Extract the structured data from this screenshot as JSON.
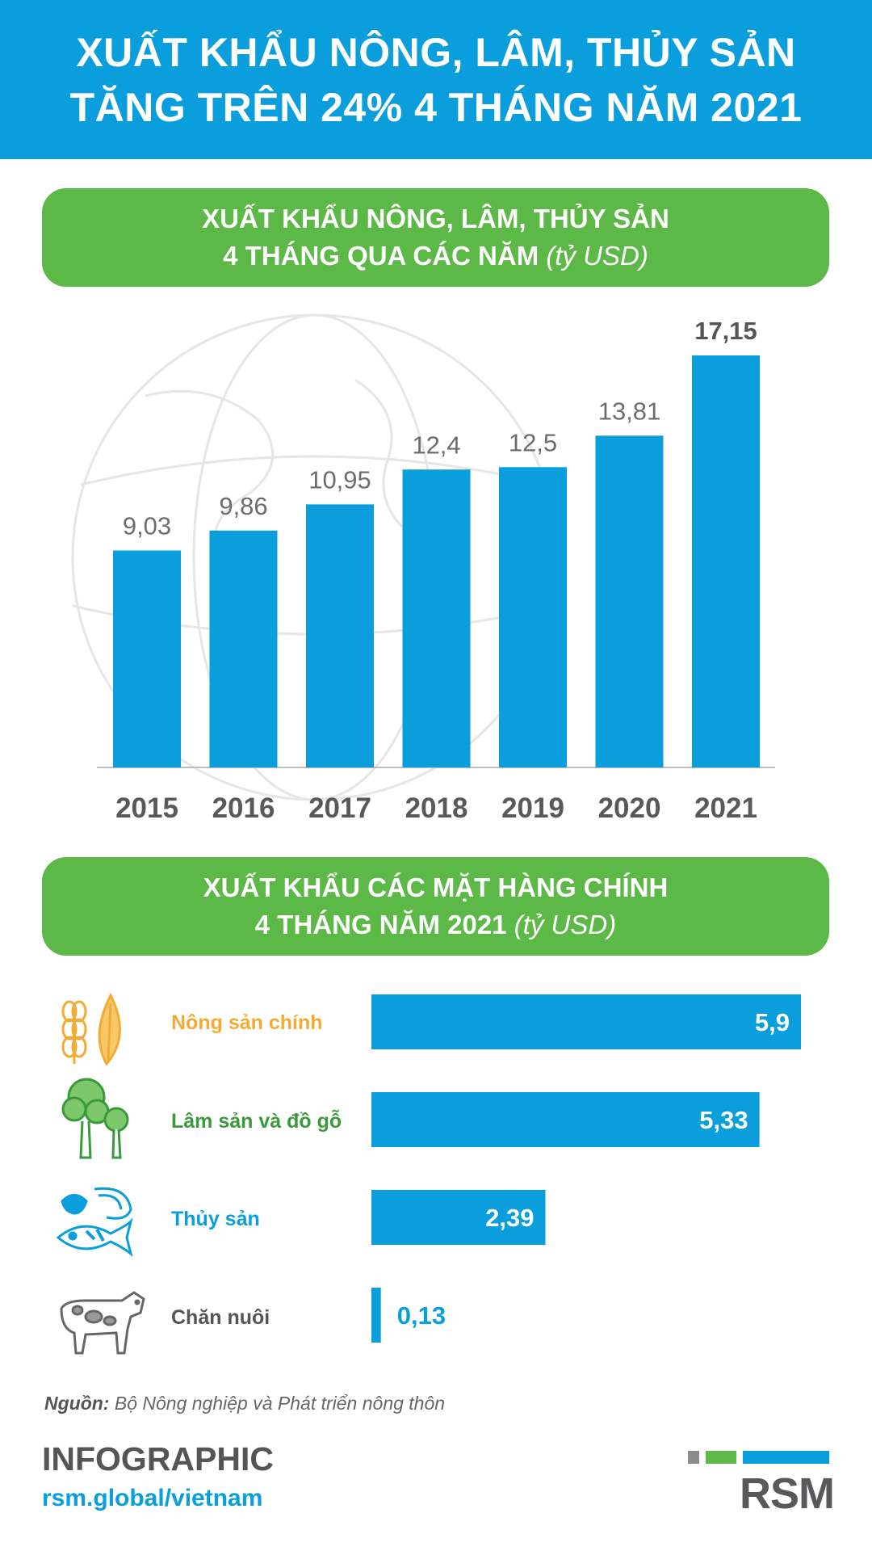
{
  "header": {
    "line1": "XUẤT KHẨU NÔNG, LÂM, THỦY SẢN",
    "line2": "TĂNG TRÊN 24% 4 THÁNG NĂM 2021"
  },
  "section1": {
    "line1": "XUẤT KHẨU NÔNG, LÂM, THỦY SẢN",
    "line2": "4 THÁNG QUA CÁC NĂM",
    "unit": "(tỷ USD)"
  },
  "section2": {
    "line1": "XUẤT KHẨU CÁC MẶT HÀNG CHÍNH",
    "line2": "4 THÁNG NĂM 2021",
    "unit": "(tỷ USD)"
  },
  "chart_data": [
    {
      "type": "bar",
      "orientation": "vertical",
      "categories": [
        "2015",
        "2016",
        "2017",
        "2018",
        "2019",
        "2020",
        "2021"
      ],
      "values": [
        9.03,
        9.86,
        10.95,
        12.4,
        12.5,
        13.81,
        17.15
      ],
      "value_labels": [
        "9,03",
        "9,86",
        "10,95",
        "12,4",
        "12,5",
        "13,81",
        "17,15"
      ],
      "ylim": [
        0,
        17.15
      ],
      "grid": false,
      "bar_color": "#0a9fdc"
    },
    {
      "type": "bar",
      "orientation": "horizontal",
      "categories": [
        "Nông sản chính",
        "Lâm sản và đồ gỗ",
        "Thủy sản",
        "Chăn nuôi"
      ],
      "values": [
        5.9,
        5.33,
        2.39,
        0.13
      ],
      "value_labels": [
        "5,9",
        "5,33",
        "2,39",
        "0,13"
      ],
      "category_colors": [
        "#f3ab36",
        "#3a9a3a",
        "#0a9fdc",
        "#555555"
      ],
      "icons": [
        "wheat-icon",
        "tree-icon",
        "seafood-icon",
        "cow-icon"
      ],
      "xlim": [
        0,
        5.9
      ],
      "bar_color": "#0a9fdc"
    }
  ],
  "source": {
    "label": "Nguồn:",
    "text": "Bộ Nông nghiệp và Phát triển nông thôn"
  },
  "brand": {
    "title": "INFOGRAPHIC",
    "url": "rsm.global/vietnam",
    "logo_text": "RSM"
  }
}
